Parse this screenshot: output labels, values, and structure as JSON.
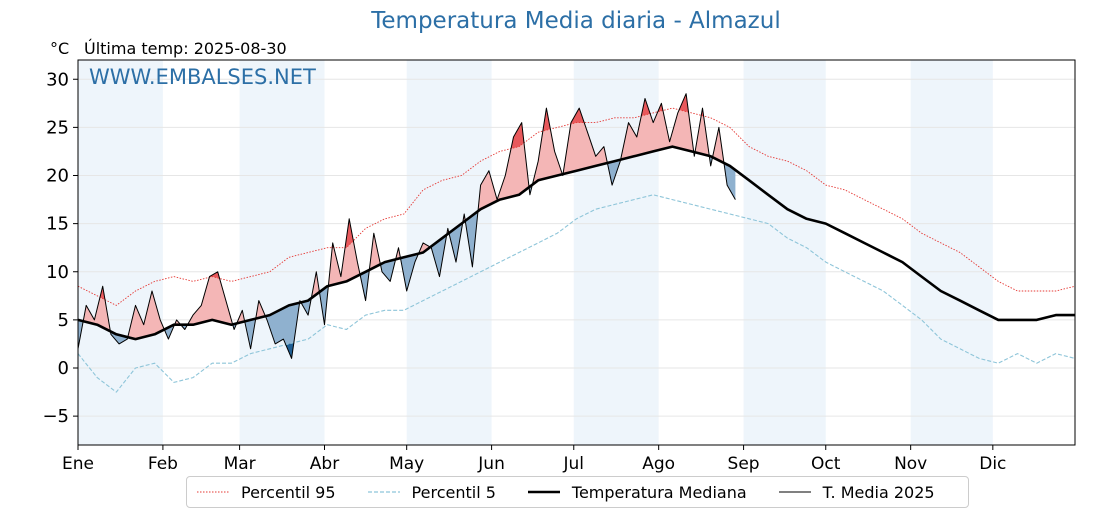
{
  "header": {
    "title": "Temperatura Media diaria - Almazul",
    "unit": "°C",
    "last_temp": "Última temp: 2025-08-30",
    "watermark": "WWW.EMBALSES.NET"
  },
  "colors": {
    "title": "#2c6fa6",
    "p95": "#e53935",
    "p5": "#8ec5d9",
    "median": "#000000",
    "year": "#000000",
    "above_fill": "#f4b6b6",
    "above_extreme_fill": "#e8595c",
    "below_fill": "#8fb1cf",
    "below_extreme_fill": "#1f5f94",
    "month_band": "#eef5fb"
  },
  "chart_data": {
    "type": "line",
    "title": "Temperatura Media diaria - Almazul",
    "ylabel": "°C",
    "ylim": [
      -8,
      32
    ],
    "yticks": [
      -5,
      0,
      5,
      10,
      15,
      20,
      25,
      30
    ],
    "x_months": [
      "Ene",
      "Feb",
      "Mar",
      "Abr",
      "May",
      "Jun",
      "Jul",
      "Ago",
      "Sep",
      "Oct",
      "Nov",
      "Dic"
    ],
    "month_start_days": [
      1,
      32,
      60,
      91,
      121,
      152,
      182,
      213,
      244,
      274,
      305,
      335
    ],
    "xlim_days": [
      1,
      365
    ],
    "shaded_months": [
      "Ene",
      "Mar",
      "May",
      "Jul",
      "Sep",
      "Nov"
    ],
    "legend": [
      "Percentil 95",
      "Percentil 5",
      "Temperatura Mediana",
      "T. Media 2025"
    ],
    "legend_position": "bottom-center",
    "series": [
      {
        "name": "Percentil 95",
        "style": "dotted-red",
        "days": [
          1,
          8,
          15,
          22,
          29,
          36,
          43,
          50,
          57,
          64,
          71,
          78,
          85,
          92,
          99,
          106,
          113,
          120,
          127,
          134,
          141,
          148,
          155,
          162,
          169,
          176,
          183,
          190,
          197,
          204,
          211,
          218,
          225,
          232,
          239,
          246,
          253,
          260,
          267,
          274,
          281,
          288,
          295,
          302,
          309,
          316,
          323,
          330,
          337,
          344,
          351,
          358,
          365
        ],
        "values": [
          8.5,
          7.5,
          6.5,
          8.0,
          9.0,
          9.5,
          9.0,
          9.5,
          9.0,
          9.5,
          10.0,
          11.5,
          12.0,
          12.5,
          12.5,
          14.5,
          15.5,
          16.0,
          18.5,
          19.5,
          20.0,
          21.5,
          22.5,
          23.0,
          24.5,
          25.0,
          25.5,
          25.5,
          26.0,
          26.0,
          26.5,
          27.0,
          26.5,
          26.0,
          25.0,
          23.0,
          22.0,
          21.5,
          20.5,
          19.0,
          18.5,
          17.5,
          16.5,
          15.5,
          14.0,
          13.0,
          12.0,
          10.5,
          9.0,
          8.0,
          8.0,
          8.0,
          8.5
        ]
      },
      {
        "name": "Percentil 5",
        "style": "dashed-lightblue",
        "days": [
          1,
          8,
          15,
          22,
          29,
          36,
          43,
          50,
          57,
          64,
          71,
          78,
          85,
          92,
          99,
          106,
          113,
          120,
          127,
          134,
          141,
          148,
          155,
          162,
          169,
          176,
          183,
          190,
          197,
          204,
          211,
          218,
          225,
          232,
          239,
          246,
          253,
          260,
          267,
          274,
          281,
          288,
          295,
          302,
          309,
          316,
          323,
          330,
          337,
          344,
          351,
          358,
          365
        ],
        "values": [
          1.5,
          -1.0,
          -2.5,
          0.0,
          0.5,
          -1.5,
          -1.0,
          0.5,
          0.5,
          1.5,
          2.0,
          2.5,
          3.0,
          4.5,
          4.0,
          5.5,
          6.0,
          6.0,
          7.0,
          8.0,
          9.0,
          10.0,
          11.0,
          12.0,
          13.0,
          14.0,
          15.5,
          16.5,
          17.0,
          17.5,
          18.0,
          17.5,
          17.0,
          16.5,
          16.0,
          15.5,
          15.0,
          13.5,
          12.5,
          11.0,
          10.0,
          9.0,
          8.0,
          6.5,
          5.0,
          3.0,
          2.0,
          1.0,
          0.5,
          1.5,
          0.5,
          1.5,
          1.0
        ]
      },
      {
        "name": "Temperatura Mediana",
        "style": "thick-black",
        "days": [
          1,
          8,
          15,
          22,
          29,
          36,
          43,
          50,
          57,
          64,
          71,
          78,
          85,
          92,
          99,
          106,
          113,
          120,
          127,
          134,
          141,
          148,
          155,
          162,
          169,
          176,
          183,
          190,
          197,
          204,
          211,
          218,
          225,
          232,
          239,
          246,
          253,
          260,
          267,
          274,
          281,
          288,
          295,
          302,
          309,
          316,
          323,
          330,
          337,
          344,
          351,
          358,
          365
        ],
        "values": [
          5.0,
          4.5,
          3.5,
          3.0,
          3.5,
          4.5,
          4.5,
          5.0,
          4.5,
          5.0,
          5.5,
          6.5,
          7.0,
          8.5,
          9.0,
          10.0,
          11.0,
          11.5,
          12.0,
          13.5,
          15.0,
          16.5,
          17.5,
          18.0,
          19.5,
          20.0,
          20.5,
          21.0,
          21.5,
          22.0,
          22.5,
          23.0,
          22.5,
          22.0,
          21.0,
          19.5,
          18.0,
          16.5,
          15.5,
          15.0,
          14.0,
          13.0,
          12.0,
          11.0,
          9.5,
          8.0,
          7.0,
          6.0,
          5.0,
          5.0,
          5.0,
          5.5,
          5.5
        ]
      },
      {
        "name": "T. Media 2025",
        "style": "thin-black",
        "days": [
          1,
          4,
          7,
          10,
          13,
          16,
          19,
          22,
          25,
          28,
          31,
          34,
          37,
          40,
          43,
          46,
          49,
          52,
          55,
          58,
          61,
          64,
          67,
          70,
          73,
          76,
          79,
          82,
          85,
          88,
          91,
          94,
          97,
          100,
          103,
          106,
          109,
          112,
          115,
          118,
          121,
          124,
          127,
          130,
          133,
          136,
          139,
          142,
          145,
          148,
          151,
          154,
          157,
          160,
          163,
          166,
          169,
          172,
          175,
          178,
          181,
          184,
          187,
          190,
          193,
          196,
          199,
          202,
          205,
          208,
          211,
          214,
          217,
          220,
          223,
          226,
          229,
          232,
          235,
          238,
          241
        ],
        "values": [
          2.0,
          6.5,
          5.0,
          8.5,
          3.5,
          2.5,
          3.0,
          6.5,
          4.5,
          8.0,
          5.0,
          3.0,
          5.0,
          4.0,
          5.5,
          6.5,
          9.5,
          10.0,
          7.0,
          4.0,
          6.0,
          2.0,
          7.0,
          5.0,
          2.5,
          3.0,
          1.0,
          7.0,
          5.5,
          10.0,
          4.5,
          13.0,
          9.5,
          15.5,
          11.0,
          7.0,
          14.0,
          10.0,
          9.0,
          12.5,
          8.0,
          11.0,
          13.0,
          12.5,
          9.5,
          14.5,
          11.0,
          16.0,
          10.5,
          19.0,
          20.5,
          17.5,
          20.0,
          24.0,
          25.5,
          18.0,
          21.5,
          27.0,
          22.5,
          20.0,
          25.5,
          27.0,
          24.5,
          22.0,
          23.0,
          19.0,
          21.5,
          25.5,
          24.0,
          28.0,
          25.5,
          27.5,
          23.5,
          26.5,
          28.5,
          22.0,
          27.0,
          21.0,
          25.0,
          19.0,
          17.5
        ]
      }
    ]
  }
}
